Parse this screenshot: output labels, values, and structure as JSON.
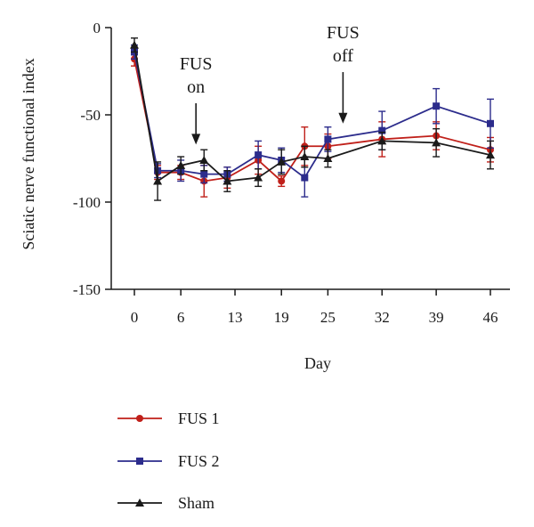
{
  "chart_data": {
    "type": "line",
    "title": "",
    "xlabel": "Day",
    "ylabel": "Sciatic nerve functional index",
    "xlim": [
      -2,
      47
    ],
    "ylim": [
      -150,
      0
    ],
    "xticks": [
      0,
      6,
      13,
      19,
      25,
      32,
      39,
      46
    ],
    "yticks": [
      0,
      -50,
      -100,
      -150
    ],
    "grid": false,
    "legend_position": "bottom-left",
    "series": [
      {
        "name": "FUS 1",
        "color": "#c0201a",
        "marker": "circle",
        "x": [
          0,
          3,
          6,
          9,
          12,
          16,
          19,
          22,
          25,
          32,
          39,
          46
        ],
        "y": [
          -18,
          -83,
          -83,
          -88,
          -86,
          -76,
          -88,
          -68,
          -68,
          -64,
          -62,
          -70
        ],
        "err": [
          4,
          4,
          4,
          9,
          6,
          8,
          3,
          11,
          7,
          10,
          8,
          7
        ]
      },
      {
        "name": "FUS 2",
        "color": "#2c2c8c",
        "marker": "square",
        "x": [
          0,
          3,
          6,
          9,
          12,
          16,
          19,
          22,
          25,
          32,
          39,
          46
        ],
        "y": [
          -14,
          -82,
          -82,
          -84,
          -84,
          -73,
          -76,
          -86,
          -64,
          -59,
          -45,
          -55
        ],
        "err": [
          4,
          4,
          6,
          5,
          4,
          8,
          7,
          11,
          7,
          11,
          10,
          14
        ]
      },
      {
        "name": "Sham",
        "color": "#1a1a1a",
        "marker": "triangle",
        "x": [
          0,
          3,
          6,
          9,
          12,
          16,
          19,
          22,
          25,
          32,
          39,
          46
        ],
        "y": [
          -10,
          -88,
          -79,
          -76,
          -88,
          -86,
          -77,
          -74,
          -75,
          -65,
          -66,
          -73
        ],
        "err": [
          4,
          11,
          5,
          6,
          6,
          5,
          7,
          6,
          5,
          5,
          8,
          8
        ]
      }
    ],
    "annotations": [
      {
        "id": "fus-on",
        "lines": [
          "FUS",
          "on"
        ],
        "x": 6,
        "arrow_to_y": -67
      },
      {
        "id": "fus-off",
        "lines": [
          "FUS",
          "off"
        ],
        "x": 25,
        "arrow_to_y": -55
      }
    ]
  }
}
